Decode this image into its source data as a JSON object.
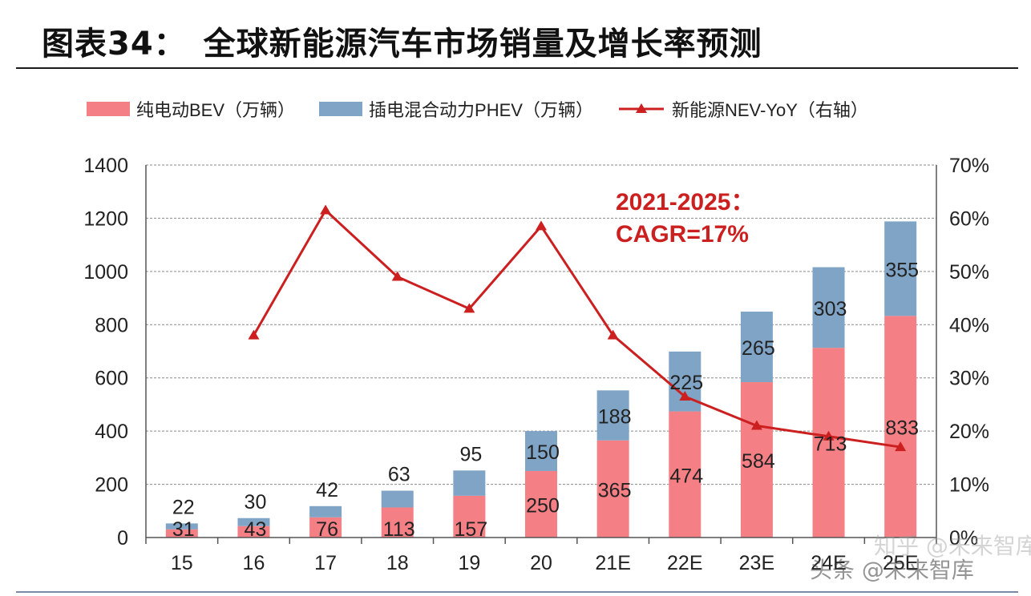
{
  "title": "图表34：　全球新能源汽车市场销量及增长率预测",
  "colors": {
    "bev": "#f47f84",
    "phev": "#7fa4c6",
    "nev_line": "#cc1f1f",
    "annotation": "#cc1f1f"
  },
  "legend": {
    "bev": "纯电动BEV（万辆）",
    "phev": "插电混合动力PHEV（万辆）",
    "nev": "新能源NEV-YoY（右轴）"
  },
  "annotation": {
    "line1": "2021-2025：",
    "line2": "CAGR=17%"
  },
  "watermark": {
    "text1": "知乎 @未来智库",
    "text2": "头条 @未来智库"
  },
  "chart_data": {
    "type": "bar",
    "stacked": true,
    "categories": [
      "15",
      "16",
      "17",
      "18",
      "19",
      "20",
      "21E",
      "22E",
      "23E",
      "24E",
      "25E"
    ],
    "series": [
      {
        "name": "纯电动BEV（万辆）",
        "values": [
          31,
          43,
          76,
          113,
          157,
          250,
          365,
          474,
          584,
          713,
          833
        ]
      },
      {
        "name": "插电混合动力PHEV（万辆）",
        "values": [
          22,
          30,
          42,
          63,
          95,
          150,
          188,
          225,
          265,
          303,
          355
        ]
      }
    ],
    "line_series": {
      "name": "新能源NEV-YoY（右轴）",
      "axis": "right",
      "values": [
        null,
        0.38,
        0.615,
        0.49,
        0.43,
        0.585,
        0.38,
        0.265,
        0.21,
        0.19,
        0.17
      ]
    },
    "y_left": {
      "min": 0,
      "max": 1400,
      "ticks": [
        "0",
        "200",
        "400",
        "600",
        "800",
        "1000",
        "1200",
        "1400"
      ]
    },
    "y_right": {
      "min": 0,
      "max": 0.7,
      "ticks": [
        "0%",
        "10%",
        "20%",
        "30%",
        "40%",
        "50%",
        "60%",
        "70%"
      ]
    },
    "grid": "dashed-horizontal"
  }
}
